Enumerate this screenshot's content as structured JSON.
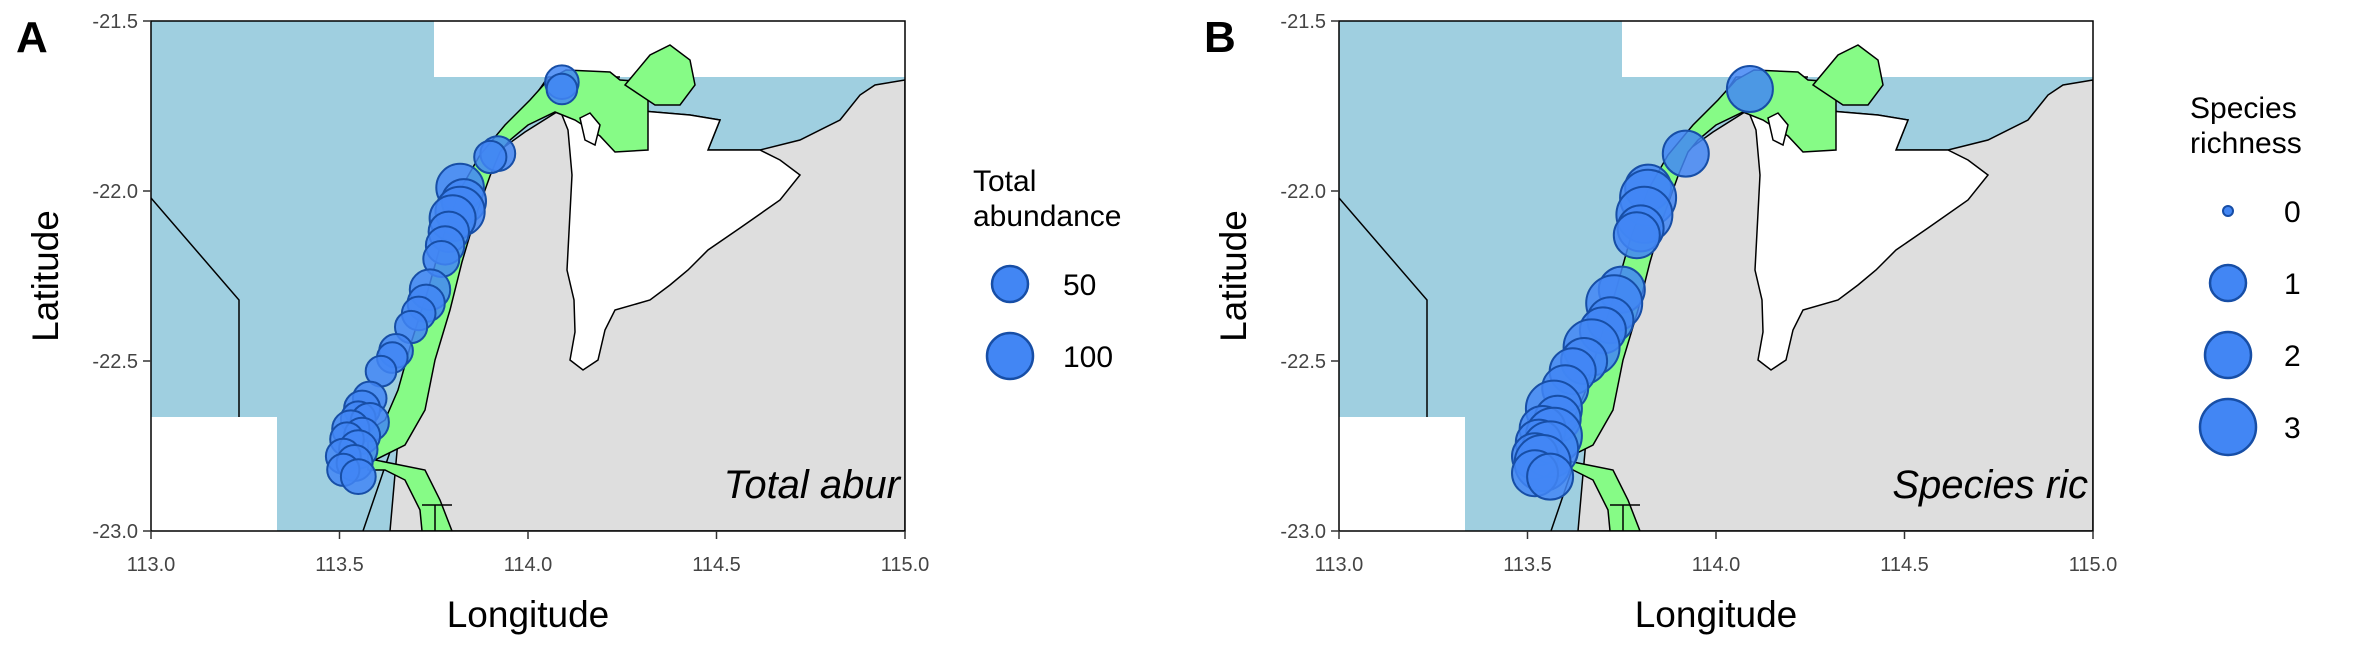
{
  "colors": {
    "ocean": "#9fcfe0",
    "land": "#dedede",
    "island": "#ffffff",
    "marine_park": "#86fb86",
    "site_fill": "#4286f4",
    "site_stroke": "#174ea6"
  },
  "panels": [
    {
      "letter": "A",
      "caption": "Total abur",
      "xlabel": "Longitude",
      "ylabel": "Latitude",
      "xticks": [
        "113.0",
        "113.5",
        "114.0",
        "114.5",
        "115.0"
      ],
      "yticks": [
        "-21.5",
        "-22.0",
        "-22.5",
        "-23.0"
      ],
      "legend": {
        "title_lines": [
          "Total",
          "abundance"
        ],
        "entries": [
          {
            "label": "50",
            "value": 50
          },
          {
            "label": "100",
            "value": 100
          }
        ]
      }
    },
    {
      "letter": "B",
      "caption": "Species ric",
      "xlabel": "Longitude",
      "ylabel": "Latitude",
      "xticks": [
        "113.0",
        "113.5",
        "114.0",
        "114.5",
        "115.0"
      ],
      "yticks": [
        "-21.5",
        "-22.0",
        "-22.5",
        "-23.0"
      ],
      "legend": {
        "title_lines": [
          "Species",
          "richness"
        ],
        "entries": [
          {
            "label": "0",
            "value": 0
          },
          {
            "label": "1",
            "value": 1
          },
          {
            "label": "2",
            "value": 2
          },
          {
            "label": "3",
            "value": 3
          }
        ]
      }
    }
  ],
  "chart_data": [
    {
      "type": "scatter",
      "xlabel": "Longitude",
      "ylabel": "Latitude",
      "xlim": [
        113.0,
        115.0
      ],
      "ylim": [
        -23.0,
        -21.5
      ],
      "size_variable": "Total abundance",
      "points": [
        {
          "lon": 114.09,
          "lat": -21.68,
          "v": 40
        },
        {
          "lon": 114.09,
          "lat": -21.7,
          "v": 30
        },
        {
          "lon": 113.92,
          "lat": -21.89,
          "v": 45
        },
        {
          "lon": 113.9,
          "lat": -21.9,
          "v": 35
        },
        {
          "lon": 113.82,
          "lat": -21.99,
          "v": 110
        },
        {
          "lon": 113.83,
          "lat": -22.03,
          "v": 90
        },
        {
          "lon": 113.82,
          "lat": -22.06,
          "v": 120
        },
        {
          "lon": 113.8,
          "lat": -22.08,
          "v": 100
        },
        {
          "lon": 113.79,
          "lat": -22.12,
          "v": 70
        },
        {
          "lon": 113.78,
          "lat": -22.16,
          "v": 60
        },
        {
          "lon": 113.77,
          "lat": -22.2,
          "v": 50
        },
        {
          "lon": 113.74,
          "lat": -22.29,
          "v": 70
        },
        {
          "lon": 113.73,
          "lat": -22.33,
          "v": 55
        },
        {
          "lon": 113.71,
          "lat": -22.36,
          "v": 40
        },
        {
          "lon": 113.69,
          "lat": -22.4,
          "v": 35
        },
        {
          "lon": 113.65,
          "lat": -22.47,
          "v": 40
        },
        {
          "lon": 113.64,
          "lat": -22.49,
          "v": 30
        },
        {
          "lon": 113.61,
          "lat": -22.53,
          "v": 30
        },
        {
          "lon": 113.58,
          "lat": -22.61,
          "v": 40
        },
        {
          "lon": 113.56,
          "lat": -22.64,
          "v": 50
        },
        {
          "lon": 113.55,
          "lat": -22.67,
          "v": 45
        },
        {
          "lon": 113.58,
          "lat": -22.68,
          "v": 60
        },
        {
          "lon": 113.53,
          "lat": -22.7,
          "v": 55
        },
        {
          "lon": 113.56,
          "lat": -22.72,
          "v": 50
        },
        {
          "lon": 113.52,
          "lat": -22.73,
          "v": 40
        },
        {
          "lon": 113.55,
          "lat": -22.76,
          "v": 60
        },
        {
          "lon": 113.51,
          "lat": -22.78,
          "v": 45
        },
        {
          "lon": 113.54,
          "lat": -22.8,
          "v": 50
        },
        {
          "lon": 113.51,
          "lat": -22.82,
          "v": 35
        },
        {
          "lon": 113.55,
          "lat": -22.84,
          "v": 45
        }
      ]
    },
    {
      "type": "scatter",
      "xlabel": "Longitude",
      "ylabel": "Latitude",
      "xlim": [
        113.0,
        115.0
      ],
      "ylim": [
        -23.0,
        -21.5
      ],
      "size_variable": "Species richness",
      "points": [
        {
          "lon": 114.09,
          "lat": -21.7,
          "v": 2
        },
        {
          "lon": 113.92,
          "lat": -21.89,
          "v": 2
        },
        {
          "lon": 113.82,
          "lat": -21.99,
          "v": 2
        },
        {
          "lon": 113.82,
          "lat": -22.02,
          "v": 3
        },
        {
          "lon": 113.81,
          "lat": -22.07,
          "v": 3
        },
        {
          "lon": 113.8,
          "lat": -22.11,
          "v": 2
        },
        {
          "lon": 113.79,
          "lat": -22.13,
          "v": 2
        },
        {
          "lon": 113.75,
          "lat": -22.29,
          "v": 2
        },
        {
          "lon": 113.73,
          "lat": -22.33,
          "v": 3
        },
        {
          "lon": 113.72,
          "lat": -22.38,
          "v": 2
        },
        {
          "lon": 113.7,
          "lat": -22.41,
          "v": 2
        },
        {
          "lon": 113.67,
          "lat": -22.46,
          "v": 3
        },
        {
          "lon": 113.65,
          "lat": -22.5,
          "v": 2
        },
        {
          "lon": 113.62,
          "lat": -22.53,
          "v": 2
        },
        {
          "lon": 113.6,
          "lat": -22.58,
          "v": 2
        },
        {
          "lon": 113.57,
          "lat": -22.64,
          "v": 3
        },
        {
          "lon": 113.58,
          "lat": -22.67,
          "v": 2
        },
        {
          "lon": 113.54,
          "lat": -22.7,
          "v": 2
        },
        {
          "lon": 113.57,
          "lat": -22.72,
          "v": 3
        },
        {
          "lon": 113.53,
          "lat": -22.74,
          "v": 2
        },
        {
          "lon": 113.56,
          "lat": -22.76,
          "v": 3
        },
        {
          "lon": 113.52,
          "lat": -22.78,
          "v": 2
        },
        {
          "lon": 113.54,
          "lat": -22.8,
          "v": 3
        },
        {
          "lon": 113.52,
          "lat": -22.83,
          "v": 2
        },
        {
          "lon": 113.56,
          "lat": -22.84,
          "v": 2
        }
      ]
    }
  ]
}
